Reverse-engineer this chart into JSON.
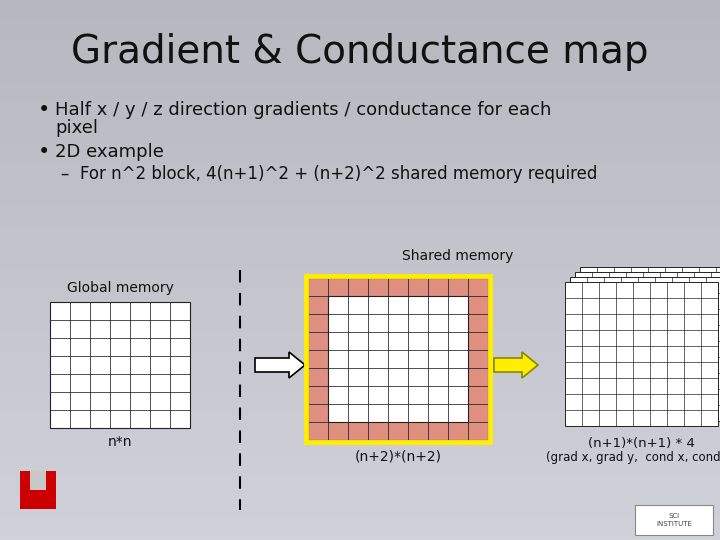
{
  "title": "Gradient & Conductance map",
  "bullet1a": "Half x / y / z direction gradients / conductance for each",
  "bullet1b": "pixel",
  "bullet2": "2D example",
  "sub_bullet": "For n^2 block, 4(n+1)^2 + (n+2)^2 shared memory required",
  "label_global": "Global memory",
  "label_shared": "Shared memory",
  "label_nn": "n*n",
  "label_n2": "(n+2)*(n+2)",
  "label_n1": "(n+1)*(n+1) * 4",
  "label_grad": "(grad x, grad y,  cond x, cond y)",
  "bg_top": "#b0b0b8",
  "bg_bot": "#d0d0d8",
  "title_color": "#111111",
  "text_color": "#111111",
  "grid_color": "#222222",
  "pink_color": "#e09080",
  "yellow_color": "#ffee00",
  "white_color": "#ffffff",
  "red_u_color": "#cc0000",
  "title_fontsize": 28,
  "body_fontsize": 13,
  "sub_fontsize": 12
}
